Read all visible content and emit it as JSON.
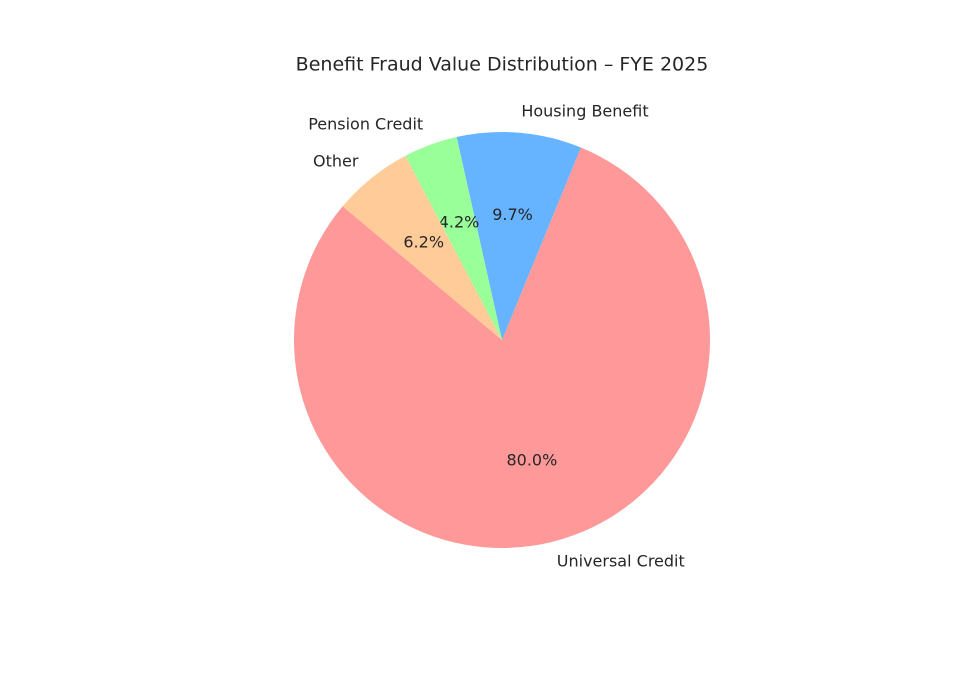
{
  "chart_data": {
    "type": "pie",
    "title": "Benefit Fraud Value Distribution – FYE 2025",
    "categories": [
      "Universal Credit",
      "Housing Benefit",
      "Pension Credit",
      "Other"
    ],
    "values": [
      80.0,
      9.7,
      4.2,
      6.2
    ],
    "value_labels": [
      "80.0%",
      "9.7%",
      "4.2%",
      "6.2%"
    ],
    "colors": [
      "#ff9999",
      "#66b3ff",
      "#99ff99",
      "#ffcc99"
    ],
    "start_angle": 140
  }
}
